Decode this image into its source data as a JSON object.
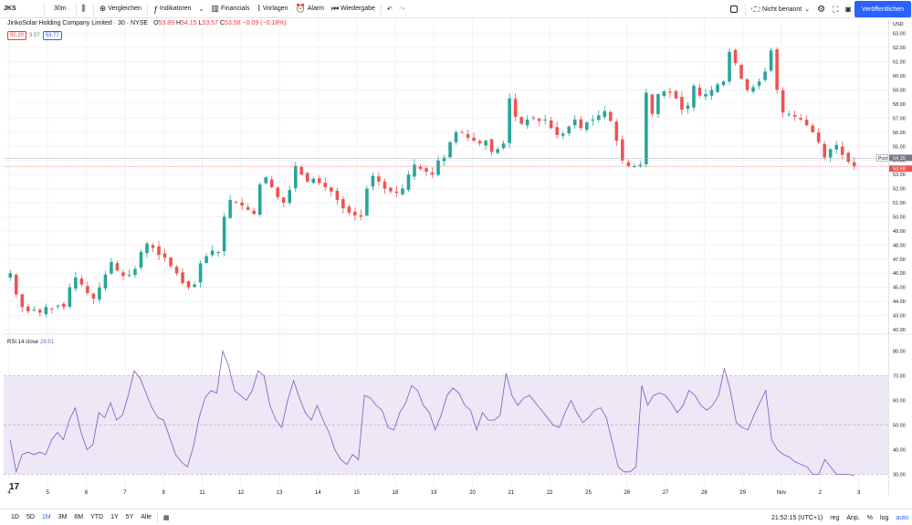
{
  "toolbar": {
    "symbol": "JKS",
    "interval": "30m",
    "compare": "Vergleichen",
    "indicators": "Indikatoren",
    "financials": "Financials",
    "templates": "Vorlagen",
    "alarm": "Alarm",
    "replay": "Wiedergabe",
    "layout_name": "Nicht benannt",
    "publish": "Veröffentlichen"
  },
  "legend": {
    "title": "JinkoSolar Holding Company Limited · 30 · NYSE",
    "open_label": "O",
    "open": "53.89",
    "high_label": "H",
    "high": "54.15",
    "low_label": "L",
    "low": "53.57",
    "close_label": "C",
    "close": "53.58",
    "change": "−0.09 (−0.18%)",
    "bid": "50.20",
    "spread": "3.57",
    "ask": "53.77"
  },
  "rsi": {
    "label": "RSI 14 close",
    "value": "29.51",
    "levels": [
      30,
      50,
      70
    ],
    "ticks": [
      "30.00",
      "40.00",
      "50.00",
      "60.00",
      "70.00",
      "80.00"
    ]
  },
  "price_axis": {
    "currency": "USD",
    "ticks": [
      "42.00",
      "43.00",
      "44.00",
      "45.00",
      "46.00",
      "47.00",
      "48.00",
      "49.00",
      "50.00",
      "51.00",
      "52.00",
      "53.00",
      "54.00",
      "55.00",
      "56.00",
      "57.00",
      "58.00",
      "59.00",
      "60.00",
      "61.00",
      "62.00",
      "63.00"
    ],
    "post_label": "Post",
    "post_price": "54.15",
    "last_price": "53.58"
  },
  "time_axis": {
    "labels": [
      "4",
      "5",
      "6",
      "7",
      "8",
      "11",
      "12",
      "13",
      "14",
      "15",
      "18",
      "19",
      "20",
      "21",
      "22",
      "25",
      "26",
      "27",
      "28",
      "29",
      "Nov",
      "2",
      "3"
    ]
  },
  "bottom": {
    "ranges": [
      "1D",
      "5D",
      "1M",
      "3M",
      "6M",
      "YTD",
      "1Y",
      "5Y",
      "Alle"
    ],
    "active_range": "1M",
    "clock": "21:52:15 (UTC+1)",
    "session": "reg",
    "percent_label": "Anp.",
    "percent": "%",
    "log": "log",
    "auto": "auto"
  },
  "colors": {
    "up": "#26a69a",
    "down": "#ef5350",
    "rsi_line": "#7e57c2",
    "rsi_band": "#ede7f6",
    "accent": "#2962ff"
  },
  "chart_data": {
    "type": "candlestick",
    "title": "JinkoSolar Holding Company Limited · 30 · NYSE",
    "x_labels": [
      "4",
      "5",
      "6",
      "7",
      "8",
      "11",
      "12",
      "13",
      "14",
      "15",
      "18",
      "19",
      "20",
      "21",
      "22",
      "25",
      "26",
      "27",
      "28",
      "29",
      "Nov",
      "2",
      "3"
    ],
    "ylim": [
      42,
      63.5
    ],
    "close_path": [
      46.0,
      44.5,
      43.6,
      43.3,
      43.4,
      43.2,
      43.6,
      43.5,
      43.7,
      43.6,
      45.0,
      45.7,
      45.2,
      44.6,
      44.2,
      45.0,
      45.9,
      46.8,
      46.2,
      45.8,
      45.9,
      46.3,
      47.5,
      48.1,
      47.8,
      47.3,
      47.1,
      46.5,
      46.0,
      45.3,
      45.0,
      45.2,
      46.7,
      47.2,
      47.6,
      47.5,
      50.0,
      51.2,
      51.0,
      50.8,
      50.5,
      50.2,
      52.3,
      52.8,
      52.1,
      51.4,
      51.0,
      51.9,
      53.6,
      53.0,
      52.5,
      52.7,
      52.4,
      52.1,
      51.8,
      51.2,
      50.6,
      50.3,
      50.1,
      50.0,
      52.0,
      52.9,
      52.5,
      52.0,
      51.8,
      51.7,
      52.0,
      53.0,
      53.7,
      53.4,
      53.2,
      53.0,
      54.0,
      54.2,
      55.3,
      56.0,
      56.0,
      55.6,
      55.4,
      55.2,
      55.4,
      54.6,
      54.8,
      55.2,
      58.4,
      57.1,
      56.6,
      56.9,
      57.0,
      56.8,
      56.9,
      56.3,
      55.8,
      55.9,
      56.4,
      56.9,
      56.3,
      56.7,
      56.9,
      57.2,
      57.5,
      56.8,
      55.4,
      54.0,
      53.6,
      53.6,
      53.7,
      58.8,
      57.3,
      58.7,
      58.9,
      58.8,
      58.4,
      57.6,
      57.9,
      59.3,
      58.6,
      58.7,
      59.0,
      59.4,
      59.6,
      61.7,
      60.9,
      59.8,
      59.0,
      59.2,
      59.6,
      60.3,
      61.8,
      59.0,
      57.4,
      57.3,
      57.1,
      56.9,
      56.5,
      56.0,
      55.3,
      54.2,
      54.8,
      55.1,
      54.4,
      53.9,
      53.6
    ],
    "rsi_path": [
      44,
      31,
      38,
      39,
      38,
      39,
      38,
      44,
      47,
      44,
      52,
      57,
      47,
      40,
      42,
      55,
      53,
      59,
      52,
      54,
      62,
      72,
      69,
      63,
      57,
      53,
      52,
      45,
      38,
      35,
      33,
      41,
      53,
      61,
      64,
      63,
      80,
      74,
      64,
      62,
      60,
      64,
      72,
      70,
      58,
      52,
      49,
      60,
      68,
      61,
      55,
      52,
      58,
      52,
      47,
      40,
      36,
      34,
      38,
      36,
      62,
      61,
      58,
      56,
      49,
      48,
      55,
      59,
      66,
      64,
      58,
      55,
      48,
      54,
      62,
      65,
      63,
      58,
      56,
      48,
      55,
      52,
      52,
      54,
      71,
      62,
      58,
      61,
      62,
      59,
      56,
      53,
      50,
      49,
      55,
      60,
      55,
      51,
      53,
      56,
      57,
      53,
      43,
      33,
      31,
      31,
      33,
      66,
      58,
      62,
      63,
      62,
      59,
      55,
      58,
      64,
      62,
      58,
      56,
      58,
      62,
      73,
      64,
      51,
      49,
      48,
      54,
      59,
      64,
      44,
      40,
      38,
      37,
      35,
      34,
      33,
      30,
      30,
      36,
      33,
      30,
      30,
      30,
      29.5
    ],
    "grid": true,
    "legend": "top-left"
  }
}
